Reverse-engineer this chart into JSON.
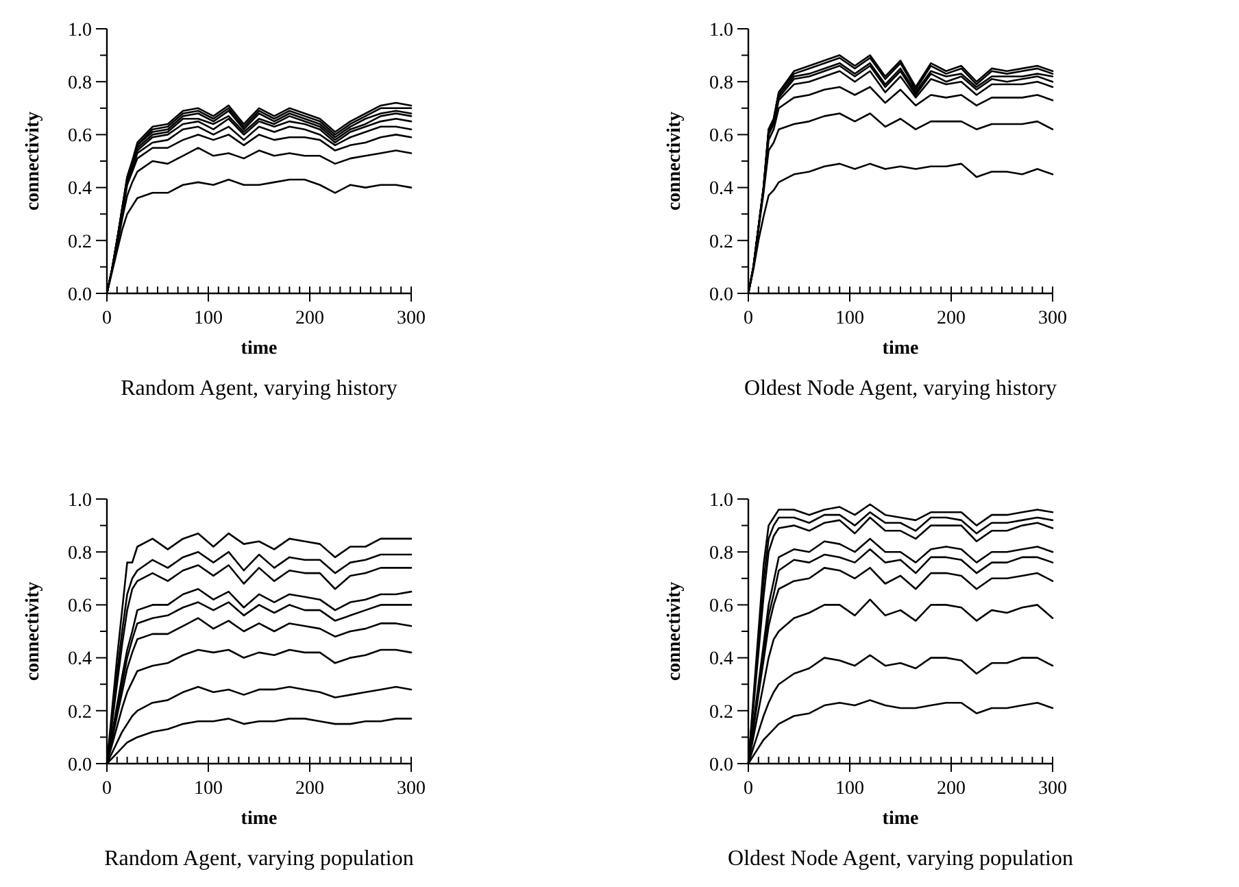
{
  "chart_data": [
    {
      "type": "line",
      "title": "Random Agent, varying history",
      "xlabel": "time",
      "ylabel": "connectivity",
      "xlim": [
        0,
        300
      ],
      "ylim": [
        0,
        1
      ],
      "xticks": [
        0,
        {
          "value": 10,
          "label": null
        },
        {
          "value": 20,
          "label": null
        },
        {
          "value": 30,
          "label": null
        },
        {
          "value": 40,
          "label": null
        },
        {
          "value": 50,
          "label": null
        },
        {
          "value": 60,
          "label": null
        },
        {
          "value": 70,
          "label": null
        },
        {
          "value": 80,
          "label": null
        },
        {
          "value": 90,
          "label": null
        },
        100,
        {
          "value": 110,
          "label": null
        },
        {
          "value": 120,
          "label": null
        },
        {
          "value": 130,
          "label": null
        },
        {
          "value": 140,
          "label": null
        },
        {
          "value": 150,
          "label": null
        },
        {
          "value": 160,
          "label": null
        },
        {
          "value": 170,
          "label": null
        },
        {
          "value": 180,
          "label": null
        },
        {
          "value": 190,
          "label": null
        },
        200,
        {
          "value": 210,
          "label": null
        },
        {
          "value": 220,
          "label": null
        },
        {
          "value": 230,
          "label": null
        },
        {
          "value": 240,
          "label": null
        },
        {
          "value": 250,
          "label": null
        },
        {
          "value": 260,
          "label": null
        },
        {
          "value": 270,
          "label": null
        },
        {
          "value": 280,
          "label": null
        },
        {
          "value": 290,
          "label": null
        },
        300
      ],
      "yticks": [
        {
          "value": 0,
          "label": "0.0"
        },
        {
          "value": 0.1,
          "label": null
        },
        {
          "value": 0.2,
          "label": "0.2"
        },
        {
          "value": 0.3,
          "label": null
        },
        {
          "value": 0.4,
          "label": "0.4"
        },
        {
          "value": 0.5,
          "label": null
        },
        {
          "value": 0.6,
          "label": "0.6"
        },
        {
          "value": 0.7,
          "label": null
        },
        {
          "value": 0.8,
          "label": "0.8"
        },
        {
          "value": 0.9,
          "label": null
        },
        {
          "value": 1,
          "label": "1.0"
        }
      ],
      "x": [
        0,
        5,
        10,
        15,
        20,
        25,
        30,
        45,
        60,
        75,
        90,
        105,
        120,
        135,
        150,
        165,
        180,
        195,
        210,
        225,
        240,
        255,
        270,
        285,
        300
      ],
      "series": [
        {
          "color": "#000000",
          "values": [
            0,
            0.09,
            0.2,
            0.32,
            0.44,
            0.5,
            0.57,
            0.63,
            0.64,
            0.69,
            0.7,
            0.67,
            0.71,
            0.64,
            0.7,
            0.67,
            0.7,
            0.68,
            0.66,
            0.61,
            0.65,
            0.68,
            0.71,
            0.72,
            0.71
          ]
        },
        {
          "color": "#000000",
          "values": [
            0,
            0.09,
            0.2,
            0.32,
            0.44,
            0.5,
            0.56,
            0.62,
            0.63,
            0.68,
            0.69,
            0.66,
            0.7,
            0.63,
            0.69,
            0.66,
            0.69,
            0.67,
            0.65,
            0.6,
            0.64,
            0.67,
            0.7,
            0.7,
            0.7
          ]
        },
        {
          "color": "#000000",
          "values": [
            0,
            0.09,
            0.2,
            0.32,
            0.43,
            0.49,
            0.56,
            0.61,
            0.62,
            0.67,
            0.68,
            0.65,
            0.69,
            0.62,
            0.68,
            0.65,
            0.68,
            0.66,
            0.64,
            0.59,
            0.63,
            0.66,
            0.68,
            0.69,
            0.68
          ]
        },
        {
          "color": "#000000",
          "values": [
            0,
            0.09,
            0.2,
            0.31,
            0.43,
            0.49,
            0.55,
            0.6,
            0.61,
            0.66,
            0.66,
            0.64,
            0.67,
            0.61,
            0.66,
            0.64,
            0.67,
            0.65,
            0.63,
            0.58,
            0.62,
            0.64,
            0.67,
            0.68,
            0.67
          ]
        },
        {
          "color": "#000000",
          "values": [
            0,
            0.09,
            0.2,
            0.31,
            0.42,
            0.48,
            0.54,
            0.59,
            0.6,
            0.64,
            0.65,
            0.62,
            0.66,
            0.6,
            0.65,
            0.63,
            0.65,
            0.64,
            0.62,
            0.57,
            0.61,
            0.63,
            0.65,
            0.66,
            0.65
          ]
        },
        {
          "color": "#000000",
          "values": [
            0,
            0.09,
            0.2,
            0.31,
            0.42,
            0.47,
            0.53,
            0.57,
            0.58,
            0.62,
            0.63,
            0.6,
            0.63,
            0.58,
            0.63,
            0.61,
            0.63,
            0.62,
            0.6,
            0.56,
            0.59,
            0.61,
            0.63,
            0.63,
            0.62
          ]
        },
        {
          "color": "#000000",
          "values": [
            0,
            0.09,
            0.19,
            0.3,
            0.41,
            0.46,
            0.51,
            0.55,
            0.55,
            0.58,
            0.6,
            0.58,
            0.6,
            0.56,
            0.6,
            0.58,
            0.59,
            0.59,
            0.58,
            0.54,
            0.56,
            0.57,
            0.59,
            0.6,
            0.59
          ]
        },
        {
          "color": "#000000",
          "values": [
            0,
            0.09,
            0.18,
            0.28,
            0.37,
            0.42,
            0.46,
            0.5,
            0.49,
            0.52,
            0.55,
            0.52,
            0.53,
            0.51,
            0.54,
            0.52,
            0.53,
            0.52,
            0.52,
            0.49,
            0.51,
            0.52,
            0.53,
            0.54,
            0.53
          ]
        },
        {
          "color": "#000000",
          "values": [
            0,
            0.08,
            0.16,
            0.24,
            0.3,
            0.33,
            0.36,
            0.38,
            0.38,
            0.41,
            0.42,
            0.41,
            0.43,
            0.41,
            0.41,
            0.42,
            0.43,
            0.43,
            0.41,
            0.38,
            0.41,
            0.4,
            0.41,
            0.41,
            0.4
          ]
        }
      ]
    },
    {
      "type": "line",
      "title": "Oldest Node Agent, varying history",
      "xlabel": "time",
      "ylabel": "connectivity",
      "xlim": [
        0,
        300
      ],
      "ylim": [
        0,
        1
      ],
      "xticks": [
        0,
        {
          "value": 10,
          "label": null
        },
        {
          "value": 20,
          "label": null
        },
        {
          "value": 30,
          "label": null
        },
        {
          "value": 40,
          "label": null
        },
        {
          "value": 50,
          "label": null
        },
        {
          "value": 60,
          "label": null
        },
        {
          "value": 70,
          "label": null
        },
        {
          "value": 80,
          "label": null
        },
        {
          "value": 90,
          "label": null
        },
        100,
        {
          "value": 110,
          "label": null
        },
        {
          "value": 120,
          "label": null
        },
        {
          "value": 130,
          "label": null
        },
        {
          "value": 140,
          "label": null
        },
        {
          "value": 150,
          "label": null
        },
        {
          "value": 160,
          "label": null
        },
        {
          "value": 170,
          "label": null
        },
        {
          "value": 180,
          "label": null
        },
        {
          "value": 190,
          "label": null
        },
        200,
        {
          "value": 210,
          "label": null
        },
        {
          "value": 220,
          "label": null
        },
        {
          "value": 230,
          "label": null
        },
        {
          "value": 240,
          "label": null
        },
        {
          "value": 250,
          "label": null
        },
        {
          "value": 260,
          "label": null
        },
        {
          "value": 270,
          "label": null
        },
        {
          "value": 280,
          "label": null
        },
        {
          "value": 290,
          "label": null
        },
        300
      ],
      "yticks": [
        {
          "value": 0,
          "label": "0.0"
        },
        {
          "value": 0.1,
          "label": null
        },
        {
          "value": 0.2,
          "label": "0.2"
        },
        {
          "value": 0.3,
          "label": null
        },
        {
          "value": 0.4,
          "label": "0.4"
        },
        {
          "value": 0.5,
          "label": null
        },
        {
          "value": 0.6,
          "label": "0.6"
        },
        {
          "value": 0.7,
          "label": null
        },
        {
          "value": 0.8,
          "label": "0.8"
        },
        {
          "value": 0.9,
          "label": null
        },
        {
          "value": 1,
          "label": "1.0"
        }
      ],
      "x": [
        0,
        5,
        10,
        15,
        20,
        25,
        30,
        45,
        60,
        75,
        90,
        105,
        120,
        135,
        150,
        165,
        180,
        195,
        210,
        225,
        240,
        255,
        270,
        285,
        300
      ],
      "series": [
        {
          "color": "#000000",
          "values": [
            0,
            0.1,
            0.25,
            0.4,
            0.62,
            0.66,
            0.76,
            0.84,
            0.86,
            0.88,
            0.9,
            0.86,
            0.9,
            0.82,
            0.88,
            0.78,
            0.87,
            0.84,
            0.86,
            0.8,
            0.85,
            0.84,
            0.85,
            0.86,
            0.84
          ]
        },
        {
          "color": "#000000",
          "values": [
            0,
            0.1,
            0.25,
            0.4,
            0.62,
            0.66,
            0.76,
            0.83,
            0.85,
            0.87,
            0.89,
            0.85,
            0.89,
            0.81,
            0.87,
            0.77,
            0.86,
            0.83,
            0.85,
            0.79,
            0.84,
            0.83,
            0.84,
            0.85,
            0.83
          ]
        },
        {
          "color": "#000000",
          "values": [
            0,
            0.1,
            0.25,
            0.4,
            0.61,
            0.65,
            0.75,
            0.82,
            0.83,
            0.85,
            0.87,
            0.83,
            0.87,
            0.79,
            0.85,
            0.76,
            0.84,
            0.82,
            0.83,
            0.78,
            0.82,
            0.82,
            0.82,
            0.83,
            0.82
          ]
        },
        {
          "color": "#000000",
          "values": [
            0,
            0.1,
            0.25,
            0.4,
            0.61,
            0.65,
            0.74,
            0.81,
            0.82,
            0.84,
            0.86,
            0.82,
            0.86,
            0.78,
            0.84,
            0.75,
            0.83,
            0.8,
            0.82,
            0.77,
            0.81,
            0.8,
            0.81,
            0.82,
            0.8
          ]
        },
        {
          "color": "#000000",
          "values": [
            0,
            0.1,
            0.25,
            0.4,
            0.6,
            0.64,
            0.73,
            0.79,
            0.8,
            0.82,
            0.84,
            0.8,
            0.84,
            0.76,
            0.82,
            0.74,
            0.81,
            0.79,
            0.8,
            0.75,
            0.79,
            0.79,
            0.79,
            0.8,
            0.78
          ]
        },
        {
          "color": "#000000",
          "values": [
            0,
            0.1,
            0.25,
            0.39,
            0.58,
            0.62,
            0.7,
            0.74,
            0.75,
            0.77,
            0.78,
            0.75,
            0.78,
            0.72,
            0.77,
            0.71,
            0.75,
            0.74,
            0.75,
            0.71,
            0.74,
            0.74,
            0.74,
            0.75,
            0.73
          ]
        },
        {
          "color": "#000000",
          "values": [
            0,
            0.1,
            0.24,
            0.38,
            0.54,
            0.57,
            0.62,
            0.64,
            0.65,
            0.67,
            0.68,
            0.65,
            0.68,
            0.63,
            0.66,
            0.62,
            0.65,
            0.65,
            0.65,
            0.62,
            0.64,
            0.64,
            0.64,
            0.65,
            0.62
          ]
        },
        {
          "color": "#000000",
          "values": [
            0,
            0.09,
            0.2,
            0.29,
            0.37,
            0.39,
            0.42,
            0.45,
            0.46,
            0.48,
            0.49,
            0.47,
            0.49,
            0.47,
            0.48,
            0.47,
            0.48,
            0.48,
            0.49,
            0.44,
            0.46,
            0.46,
            0.45,
            0.47,
            0.45
          ]
        }
      ]
    },
    {
      "type": "line",
      "title": "Random Agent, varying population",
      "xlabel": "time",
      "ylabel": "connectivity",
      "xlim": [
        0,
        300
      ],
      "ylim": [
        0,
        1
      ],
      "xticks": [
        0,
        {
          "value": 10,
          "label": null
        },
        {
          "value": 20,
          "label": null
        },
        {
          "value": 30,
          "label": null
        },
        {
          "value": 40,
          "label": null
        },
        {
          "value": 50,
          "label": null
        },
        {
          "value": 60,
          "label": null
        },
        {
          "value": 70,
          "label": null
        },
        {
          "value": 80,
          "label": null
        },
        {
          "value": 90,
          "label": null
        },
        100,
        {
          "value": 110,
          "label": null
        },
        {
          "value": 120,
          "label": null
        },
        {
          "value": 130,
          "label": null
        },
        {
          "value": 140,
          "label": null
        },
        {
          "value": 150,
          "label": null
        },
        {
          "value": 160,
          "label": null
        },
        {
          "value": 170,
          "label": null
        },
        {
          "value": 180,
          "label": null
        },
        {
          "value": 190,
          "label": null
        },
        200,
        {
          "value": 210,
          "label": null
        },
        {
          "value": 220,
          "label": null
        },
        {
          "value": 230,
          "label": null
        },
        {
          "value": 240,
          "label": null
        },
        {
          "value": 250,
          "label": null
        },
        {
          "value": 260,
          "label": null
        },
        {
          "value": 270,
          "label": null
        },
        {
          "value": 280,
          "label": null
        },
        {
          "value": 290,
          "label": null
        },
        300
      ],
      "yticks": [
        {
          "value": 0,
          "label": "0.0"
        },
        {
          "value": 0.1,
          "label": null
        },
        {
          "value": 0.2,
          "label": "0.2"
        },
        {
          "value": 0.3,
          "label": null
        },
        {
          "value": 0.4,
          "label": "0.4"
        },
        {
          "value": 0.5,
          "label": null
        },
        {
          "value": 0.6,
          "label": "0.6"
        },
        {
          "value": 0.7,
          "label": null
        },
        {
          "value": 0.8,
          "label": "0.8"
        },
        {
          "value": 0.9,
          "label": null
        },
        {
          "value": 1,
          "label": "1.0"
        }
      ],
      "x": [
        0,
        5,
        10,
        15,
        20,
        25,
        30,
        45,
        60,
        75,
        90,
        105,
        120,
        135,
        150,
        165,
        180,
        195,
        210,
        225,
        240,
        255,
        270,
        285,
        300
      ],
      "series": [
        {
          "color": "#000000",
          "values": [
            0,
            0.2,
            0.4,
            0.58,
            0.76,
            0.76,
            0.82,
            0.85,
            0.81,
            0.85,
            0.87,
            0.82,
            0.87,
            0.83,
            0.84,
            0.81,
            0.85,
            0.84,
            0.83,
            0.78,
            0.82,
            0.82,
            0.85,
            0.85,
            0.85
          ]
        },
        {
          "color": "#000000",
          "values": [
            0,
            0.17,
            0.34,
            0.5,
            0.64,
            0.7,
            0.73,
            0.77,
            0.74,
            0.78,
            0.8,
            0.76,
            0.8,
            0.73,
            0.79,
            0.74,
            0.78,
            0.77,
            0.77,
            0.72,
            0.76,
            0.77,
            0.79,
            0.79,
            0.79
          ]
        },
        {
          "color": "#000000",
          "values": [
            0,
            0.15,
            0.3,
            0.45,
            0.58,
            0.66,
            0.69,
            0.72,
            0.69,
            0.73,
            0.75,
            0.71,
            0.75,
            0.68,
            0.74,
            0.69,
            0.73,
            0.72,
            0.72,
            0.66,
            0.71,
            0.72,
            0.74,
            0.74,
            0.74
          ]
        },
        {
          "color": "#000000",
          "values": [
            0,
            0.11,
            0.22,
            0.33,
            0.43,
            0.5,
            0.58,
            0.6,
            0.6,
            0.64,
            0.66,
            0.62,
            0.65,
            0.59,
            0.64,
            0.61,
            0.64,
            0.63,
            0.62,
            0.58,
            0.61,
            0.62,
            0.64,
            0.64,
            0.65
          ]
        },
        {
          "color": "#000000",
          "values": [
            0,
            0.1,
            0.2,
            0.3,
            0.4,
            0.47,
            0.53,
            0.55,
            0.56,
            0.59,
            0.61,
            0.58,
            0.61,
            0.56,
            0.6,
            0.57,
            0.6,
            0.58,
            0.58,
            0.54,
            0.56,
            0.58,
            0.6,
            0.6,
            0.6
          ]
        },
        {
          "color": "#000000",
          "values": [
            0,
            0.09,
            0.18,
            0.27,
            0.36,
            0.42,
            0.47,
            0.49,
            0.49,
            0.52,
            0.55,
            0.51,
            0.54,
            0.5,
            0.53,
            0.5,
            0.53,
            0.52,
            0.51,
            0.48,
            0.5,
            0.51,
            0.53,
            0.53,
            0.52
          ]
        },
        {
          "color": "#000000",
          "values": [
            0,
            0.07,
            0.14,
            0.21,
            0.27,
            0.31,
            0.35,
            0.37,
            0.38,
            0.41,
            0.43,
            0.42,
            0.43,
            0.4,
            0.42,
            0.41,
            0.43,
            0.42,
            0.42,
            0.38,
            0.4,
            0.41,
            0.43,
            0.43,
            0.42
          ]
        },
        {
          "color": "#000000",
          "values": [
            0,
            0.04,
            0.08,
            0.12,
            0.15,
            0.18,
            0.2,
            0.23,
            0.24,
            0.27,
            0.29,
            0.27,
            0.28,
            0.26,
            0.28,
            0.28,
            0.29,
            0.28,
            0.27,
            0.25,
            0.26,
            0.27,
            0.28,
            0.29,
            0.28
          ]
        },
        {
          "color": "#000000",
          "values": [
            0,
            0.02,
            0.04,
            0.06,
            0.08,
            0.09,
            0.1,
            0.12,
            0.13,
            0.15,
            0.16,
            0.16,
            0.17,
            0.15,
            0.16,
            0.16,
            0.17,
            0.17,
            0.16,
            0.15,
            0.15,
            0.16,
            0.16,
            0.17,
            0.17
          ]
        }
      ]
    },
    {
      "type": "line",
      "title": "Oldest Node Agent, varying population",
      "xlabel": "time",
      "ylabel": "connectivity",
      "xlim": [
        0,
        300
      ],
      "ylim": [
        0,
        1
      ],
      "xticks": [
        0,
        {
          "value": 10,
          "label": null
        },
        {
          "value": 20,
          "label": null
        },
        {
          "value": 30,
          "label": null
        },
        {
          "value": 40,
          "label": null
        },
        {
          "value": 50,
          "label": null
        },
        {
          "value": 60,
          "label": null
        },
        {
          "value": 70,
          "label": null
        },
        {
          "value": 80,
          "label": null
        },
        {
          "value": 90,
          "label": null
        },
        100,
        {
          "value": 110,
          "label": null
        },
        {
          "value": 120,
          "label": null
        },
        {
          "value": 130,
          "label": null
        },
        {
          "value": 140,
          "label": null
        },
        {
          "value": 150,
          "label": null
        },
        {
          "value": 160,
          "label": null
        },
        {
          "value": 170,
          "label": null
        },
        {
          "value": 180,
          "label": null
        },
        {
          "value": 190,
          "label": null
        },
        200,
        {
          "value": 210,
          "label": null
        },
        {
          "value": 220,
          "label": null
        },
        {
          "value": 230,
          "label": null
        },
        {
          "value": 240,
          "label": null
        },
        {
          "value": 250,
          "label": null
        },
        {
          "value": 260,
          "label": null
        },
        {
          "value": 270,
          "label": null
        },
        {
          "value": 280,
          "label": null
        },
        {
          "value": 290,
          "label": null
        },
        300
      ],
      "yticks": [
        {
          "value": 0,
          "label": "0.0"
        },
        {
          "value": 0.1,
          "label": null
        },
        {
          "value": 0.2,
          "label": "0.2"
        },
        {
          "value": 0.3,
          "label": null
        },
        {
          "value": 0.4,
          "label": "0.4"
        },
        {
          "value": 0.5,
          "label": null
        },
        {
          "value": 0.6,
          "label": "0.6"
        },
        {
          "value": 0.7,
          "label": null
        },
        {
          "value": 0.8,
          "label": "0.8"
        },
        {
          "value": 0.9,
          "label": null
        },
        {
          "value": 1,
          "label": "1.0"
        }
      ],
      "x": [
        0,
        5,
        10,
        15,
        20,
        25,
        30,
        45,
        60,
        75,
        90,
        105,
        120,
        135,
        150,
        165,
        180,
        195,
        210,
        225,
        240,
        255,
        270,
        285,
        300
      ],
      "series": [
        {
          "color": "#000000",
          "values": [
            0,
            0.25,
            0.5,
            0.75,
            0.9,
            0.93,
            0.96,
            0.96,
            0.94,
            0.96,
            0.97,
            0.94,
            0.98,
            0.94,
            0.93,
            0.92,
            0.95,
            0.95,
            0.95,
            0.9,
            0.94,
            0.94,
            0.95,
            0.96,
            0.95
          ]
        },
        {
          "color": "#000000",
          "values": [
            0,
            0.23,
            0.46,
            0.69,
            0.85,
            0.9,
            0.93,
            0.93,
            0.91,
            0.94,
            0.94,
            0.9,
            0.95,
            0.91,
            0.91,
            0.88,
            0.93,
            0.93,
            0.92,
            0.87,
            0.91,
            0.91,
            0.92,
            0.93,
            0.92
          ]
        },
        {
          "color": "#000000",
          "values": [
            0,
            0.21,
            0.42,
            0.63,
            0.8,
            0.86,
            0.89,
            0.9,
            0.88,
            0.91,
            0.92,
            0.87,
            0.93,
            0.88,
            0.88,
            0.85,
            0.9,
            0.9,
            0.9,
            0.84,
            0.88,
            0.88,
            0.9,
            0.91,
            0.89
          ]
        },
        {
          "color": "#000000",
          "values": [
            0,
            0.15,
            0.3,
            0.45,
            0.6,
            0.69,
            0.78,
            0.81,
            0.8,
            0.84,
            0.83,
            0.8,
            0.85,
            0.8,
            0.8,
            0.76,
            0.81,
            0.82,
            0.81,
            0.76,
            0.8,
            0.8,
            0.81,
            0.82,
            0.8
          ]
        },
        {
          "color": "#000000",
          "values": [
            0,
            0.14,
            0.28,
            0.42,
            0.56,
            0.64,
            0.73,
            0.77,
            0.76,
            0.79,
            0.78,
            0.76,
            0.81,
            0.76,
            0.77,
            0.72,
            0.78,
            0.78,
            0.77,
            0.72,
            0.76,
            0.76,
            0.78,
            0.78,
            0.76
          ]
        },
        {
          "color": "#000000",
          "values": [
            0,
            0.13,
            0.26,
            0.39,
            0.52,
            0.6,
            0.66,
            0.69,
            0.7,
            0.74,
            0.73,
            0.7,
            0.74,
            0.68,
            0.71,
            0.66,
            0.72,
            0.72,
            0.71,
            0.66,
            0.7,
            0.7,
            0.71,
            0.72,
            0.69
          ]
        },
        {
          "color": "#000000",
          "values": [
            0,
            0.1,
            0.2,
            0.3,
            0.4,
            0.47,
            0.5,
            0.55,
            0.57,
            0.6,
            0.6,
            0.56,
            0.62,
            0.56,
            0.58,
            0.54,
            0.6,
            0.6,
            0.59,
            0.54,
            0.58,
            0.57,
            0.59,
            0.6,
            0.55
          ]
        },
        {
          "color": "#000000",
          "values": [
            0,
            0.06,
            0.12,
            0.18,
            0.23,
            0.27,
            0.3,
            0.34,
            0.36,
            0.4,
            0.39,
            0.37,
            0.41,
            0.37,
            0.38,
            0.36,
            0.4,
            0.4,
            0.39,
            0.34,
            0.38,
            0.38,
            0.4,
            0.4,
            0.37
          ]
        },
        {
          "color": "#000000",
          "values": [
            0,
            0.03,
            0.06,
            0.09,
            0.11,
            0.13,
            0.15,
            0.18,
            0.19,
            0.22,
            0.23,
            0.22,
            0.24,
            0.22,
            0.21,
            0.21,
            0.22,
            0.23,
            0.23,
            0.19,
            0.21,
            0.21,
            0.22,
            0.23,
            0.21
          ]
        }
      ]
    }
  ]
}
